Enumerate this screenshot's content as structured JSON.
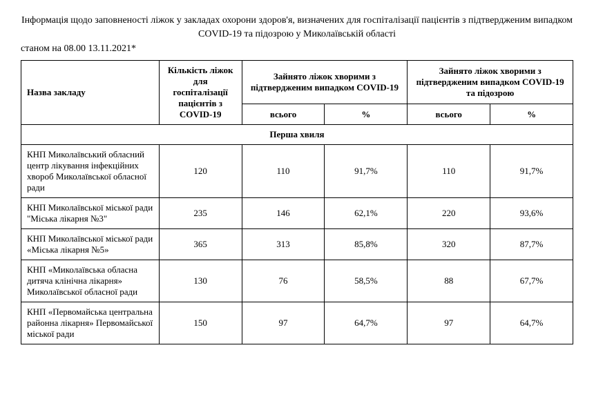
{
  "title": "Інформація щодо заповненості ліжок у закладах охорони здоров'я, визначених для госпіталізації пацієнтів з підтвердженим випадком COVID-19 та підозрою у Миколаївській області",
  "as_of": "станом на 08.00 13.11.2021*",
  "headers": {
    "name": "Назва закладу",
    "total_beds": "Кількість ліжок для госпіталізації пацієнтів з COVID-19",
    "confirmed": "Зайнято ліжок хворими з підтвердженим випадком COVID-19",
    "confirmed_suspected": "Зайнято ліжок хворими з підтвердженим випадком COVID-19 та підозрою",
    "total": "всього",
    "percent": "%"
  },
  "section": "Перша хвиля",
  "rows": [
    {
      "name": "КНП Миколаївський обласний центр лікування інфекційних хвороб Миколаївської обласної ради",
      "beds": "120",
      "conf_total": "110",
      "conf_pct": "91,7%",
      "susp_total": "110",
      "susp_pct": "91,7%"
    },
    {
      "name": "КНП Миколаївської міської ради \"Міська лікарня №3\"",
      "beds": "235",
      "conf_total": "146",
      "conf_pct": "62,1%",
      "susp_total": "220",
      "susp_pct": "93,6%"
    },
    {
      "name": "КНП Миколаївської міської ради «Міська лікарня №5»",
      "beds": "365",
      "conf_total": "313",
      "conf_pct": "85,8%",
      "susp_total": "320",
      "susp_pct": "87,7%"
    },
    {
      "name": "КНП «Миколаївська обласна дитяча клінічна лікарня» Миколаївської обласної ради",
      "beds": "130",
      "conf_total": "76",
      "conf_pct": "58,5%",
      "susp_total": "88",
      "susp_pct": "67,7%"
    },
    {
      "name": "КНП «Первомайська центральна районна лікарня» Первомайської міської ради",
      "beds": "150",
      "conf_total": "97",
      "conf_pct": "64,7%",
      "susp_total": "97",
      "susp_pct": "64,7%"
    }
  ],
  "styling": {
    "font_family": "Times New Roman",
    "title_fontsize": 14,
    "body_fontsize": 13,
    "border_color": "#000000",
    "background_color": "#ffffff",
    "text_color": "#000000",
    "col_widths_pct": [
      25,
      15,
      15,
      15,
      15,
      15
    ]
  }
}
